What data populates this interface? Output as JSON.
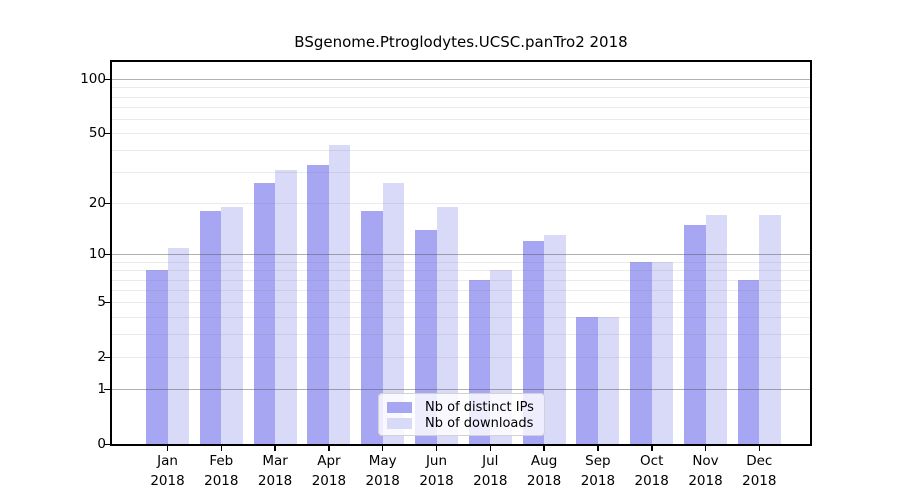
{
  "chart_data": {
    "type": "bar",
    "title": "BSgenome.Ptroglodytes.UCSC.panTro2 2018",
    "y_scale": "log1p",
    "categories": [
      "Jan",
      "Feb",
      "Mar",
      "Apr",
      "May",
      "Jun",
      "Jul",
      "Aug",
      "Sep",
      "Oct",
      "Nov",
      "Dec"
    ],
    "category_year": "2018",
    "series": [
      {
        "name": "Nb of distinct IPs",
        "color": "#a6a6f2",
        "values": [
          8,
          18,
          26,
          33,
          18,
          14,
          7,
          12,
          4,
          9,
          15,
          7
        ]
      },
      {
        "name": "Nb of downloads",
        "color": "#d9d9f8",
        "values": [
          11,
          19,
          31,
          43,
          26,
          19,
          8,
          13,
          4,
          9,
          17,
          17
        ]
      }
    ],
    "ylim": [
      0,
      125
    ],
    "yticks": [
      0,
      1,
      2,
      5,
      10,
      20,
      50,
      100
    ],
    "gridlines": {
      "major": [
        1,
        10,
        100
      ],
      "minor": [
        2,
        3,
        4,
        5,
        6,
        7,
        8,
        9,
        20,
        30,
        40,
        50,
        60,
        70,
        80,
        90
      ]
    },
    "legend": {
      "position": "lower-center",
      "entries": [
        "Nb of distinct IPs",
        "Nb of downloads"
      ]
    },
    "xlabel": "",
    "ylabel": ""
  },
  "colors": {
    "background": "#ffffff",
    "spine": "#000000",
    "major_grid": "#b0b0b0",
    "minor_grid": "#eaeaea",
    "ips_bar": "#a6a6f2",
    "downloads_bar": "#d9d9f8",
    "legend_border": "#d2d2d2"
  }
}
